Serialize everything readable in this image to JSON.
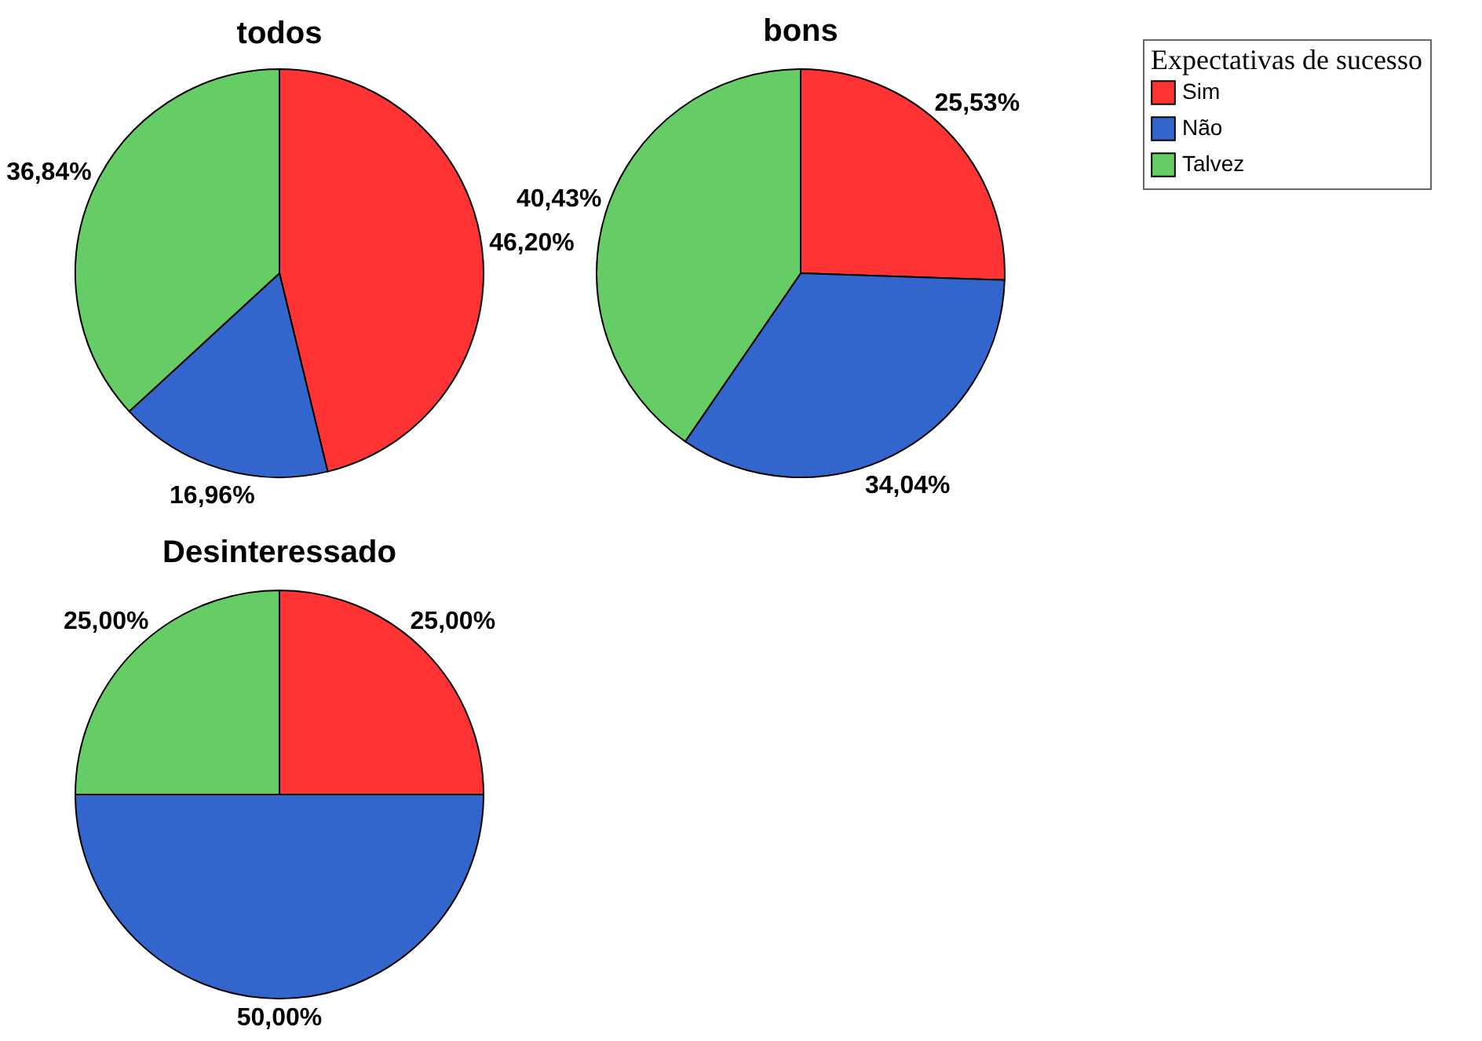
{
  "chart_data": {
    "type": "pie",
    "categories": [
      "Sim",
      "Não",
      "Talvez"
    ],
    "colors": [
      "#ff3333",
      "#3366cc",
      "#66cc66"
    ],
    "legend": "top right",
    "legend_title": "Expectativas de sucesso",
    "series": [
      {
        "name": "todos",
        "values": [
          46.2,
          16.96,
          36.84
        ],
        "value_labels": [
          "46,20%",
          "16,96%",
          "36,84%"
        ]
      },
      {
        "name": "bons",
        "values": [
          25.53,
          34.04,
          40.43
        ],
        "value_labels": [
          "25,53%",
          "34,04%",
          "40,43%"
        ]
      },
      {
        "name": "Desinteressado",
        "values": [
          25.0,
          50.0,
          25.0
        ],
        "value_labels": [
          "25,00%",
          "50,00%",
          "25,00%"
        ]
      }
    ]
  }
}
